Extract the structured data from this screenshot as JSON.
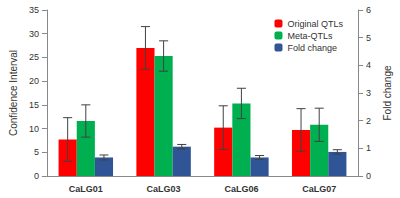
{
  "chart_data": {
    "type": "bar",
    "categories": [
      "CaLG01",
      "CaLG03",
      "CaLG06",
      "CaLG07"
    ],
    "y_label": "Confidence Interval",
    "y2_label": "Fold change",
    "series": [
      {
        "name": "Original QTLs",
        "color": "#ff0000",
        "values": [
          7.7,
          27.0,
          10.2,
          9.7
        ],
        "errors": [
          4.6,
          4.5,
          4.6,
          4.5
        ]
      },
      {
        "name": "Meta-QTLs",
        "color": "#00b050",
        "values": [
          11.6,
          25.3,
          15.3,
          10.8
        ],
        "errors": [
          3.4,
          3.2,
          3.2,
          3.5
        ]
      },
      {
        "name": "Fold change",
        "color": "#2f5597",
        "values": [
          0.67,
          1.06,
          0.67,
          0.87
        ],
        "errors": [
          0.09,
          0.08,
          0.07,
          0.08
        ],
        "axis": "y2"
      }
    ],
    "ylim": [
      0,
      35
    ],
    "yticks": [
      0,
      5,
      10,
      15,
      20,
      25,
      30,
      35
    ],
    "y2lim": [
      0,
      6
    ],
    "y2ticks": [
      0,
      1,
      2,
      3,
      4,
      5,
      6
    ],
    "legend": "top-right",
    "grid": false
  }
}
